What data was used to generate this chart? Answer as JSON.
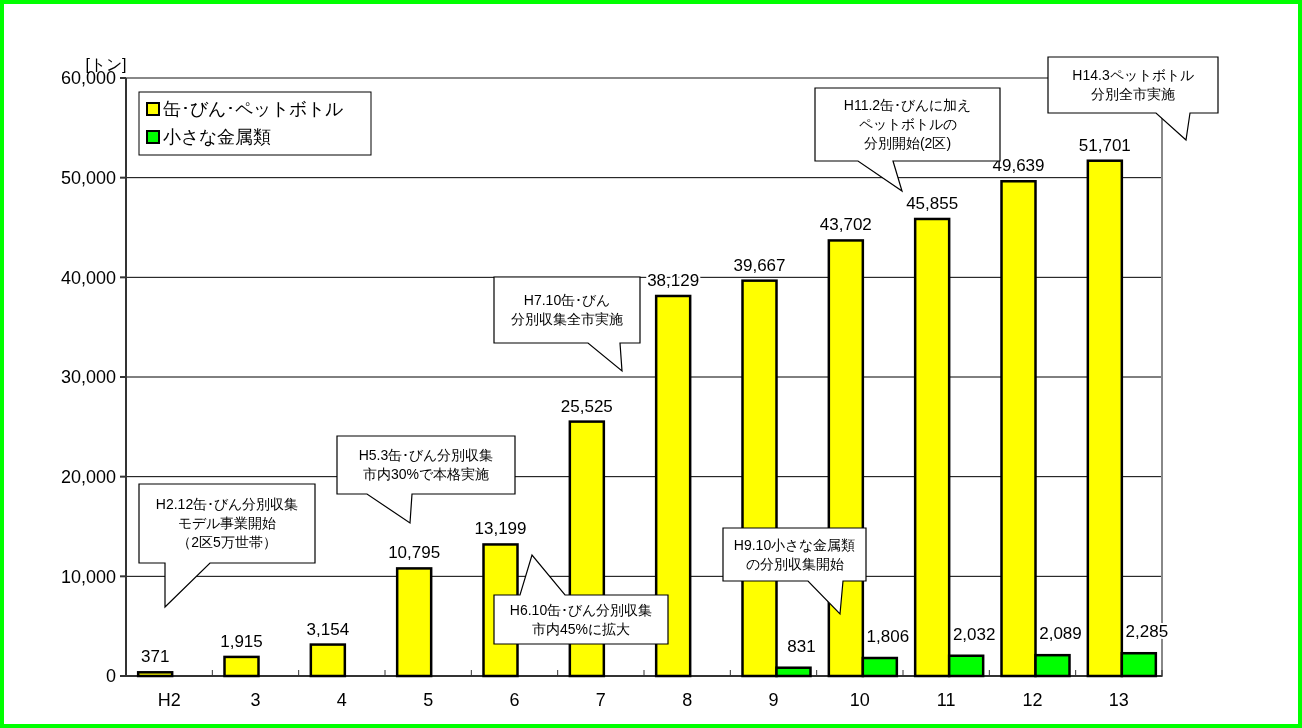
{
  "chart_data": {
    "type": "bar",
    "ylabel": "[トン]",
    "categories": [
      "H2",
      "3",
      "4",
      "5",
      "6",
      "7",
      "8",
      "9",
      "10",
      "11",
      "12",
      "13"
    ],
    "series": [
      {
        "name": "缶･びん･ペットボトル",
        "color": "#ffff00",
        "values": [
          371,
          1915,
          3154,
          10795,
          13199,
          25525,
          38129,
          39667,
          43702,
          45855,
          49639,
          51701
        ],
        "value_labels": [
          "371",
          "1,915",
          "3,154",
          "10,795",
          "13,199",
          "25,525",
          "38,129",
          "39,667",
          "43,702",
          "45,855",
          "49,639",
          "51,701"
        ]
      },
      {
        "name": "小さな金属類",
        "color": "#00ff00",
        "values": [
          null,
          null,
          null,
          null,
          null,
          null,
          null,
          831,
          1806,
          2032,
          2089,
          2285
        ],
        "value_labels": [
          null,
          null,
          null,
          null,
          null,
          null,
          null,
          "831",
          "1,806",
          "2,032",
          "2,089",
          "2,285"
        ]
      }
    ],
    "ylim": [
      0,
      60000
    ],
    "yticks": [
      {
        "value": 0,
        "label": "0"
      },
      {
        "value": 10000,
        "label": "10,000"
      },
      {
        "value": 20000,
        "label": "20,000"
      },
      {
        "value": 30000,
        "label": "30,000"
      },
      {
        "value": 40000,
        "label": "40,000"
      },
      {
        "value": 50000,
        "label": "50,000"
      },
      {
        "value": 60000,
        "label": "60,000"
      }
    ],
    "grid": "y",
    "legend": "top left",
    "annotations": [
      "H2.12缶･びん分別収集モデル事業開始（2区5万世帯）",
      "H5.3缶･びん分別収集市内30%で本格実施",
      "H6.10缶･びん分別収集市内45%に拡大",
      "H7.10缶･びん分別収集全市実施",
      "H9.10小さな金属類の分別収集開始",
      "H11.2缶･びんに加えペットボトルの分別開始(2区)",
      "H14.3ペットボトル分別全市実施"
    ]
  }
}
